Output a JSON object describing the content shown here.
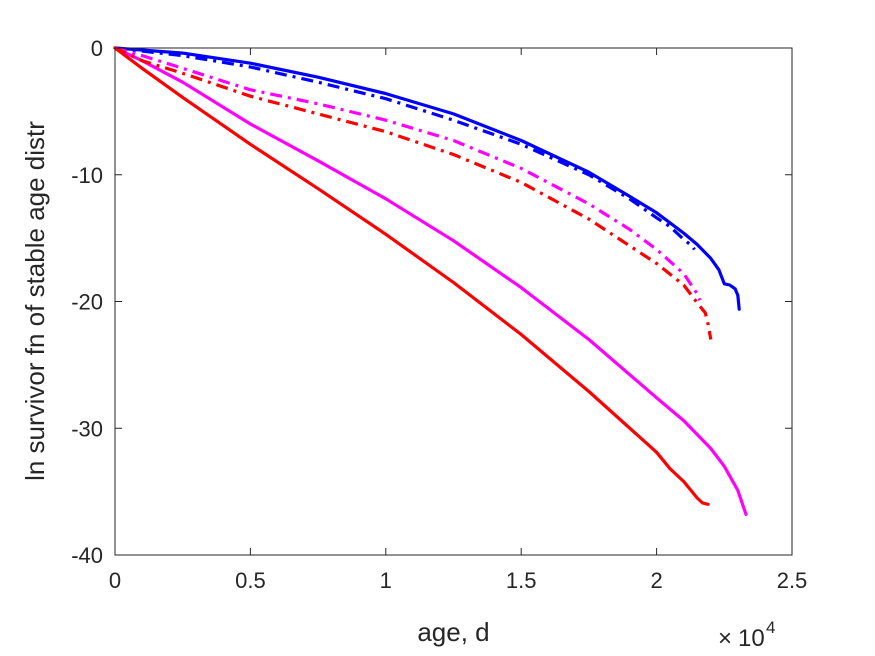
{
  "chart_data": {
    "type": "line",
    "xlabel": "age, d",
    "ylabel": "ln survivor fn of stable age distr",
    "x_exponent_label": {
      "times": "×",
      "base": "10",
      "power": "4"
    },
    "xlim": [
      0,
      25000
    ],
    "ylim": [
      -40,
      0
    ],
    "xticks": [
      0,
      5000,
      10000,
      15000,
      20000,
      25000
    ],
    "xtick_labels": [
      "0",
      "0.5",
      "1",
      "1.5",
      "2",
      "2.5"
    ],
    "yticks": [
      0,
      -10,
      -20,
      -30,
      -40
    ],
    "ytick_labels": [
      "0",
      "-10",
      "-20",
      "-30",
      "-40"
    ],
    "grid": false,
    "colors": {
      "blue": "#0000ff",
      "magenta": "#ff00ff",
      "red": "#ff0000"
    },
    "series": [
      {
        "color": "#0000ff",
        "style": "solid",
        "x": [
          0,
          2500,
          5000,
          7500,
          10000,
          12500,
          15000,
          17500,
          19000,
          20000,
          21000,
          21500,
          22000,
          22300,
          22500,
          22700,
          22900,
          23000,
          23050
        ],
        "y": [
          0,
          -0.4,
          -1.2,
          -2.3,
          -3.6,
          -5.2,
          -7.3,
          -9.8,
          -11.7,
          -13.0,
          -14.6,
          -15.5,
          -16.6,
          -17.5,
          -18.6,
          -18.7,
          -19.0,
          -19.5,
          -20.6
        ]
      },
      {
        "color": "#0000ff",
        "style": "dashdot",
        "x": [
          0,
          2500,
          5000,
          7500,
          10000,
          12500,
          15000,
          17500,
          19000,
          20000,
          20500,
          21000,
          21300,
          21400
        ],
        "y": [
          0,
          -0.6,
          -1.5,
          -2.7,
          -4.0,
          -5.7,
          -7.6,
          -10.0,
          -11.9,
          -13.4,
          -14.1,
          -15.1,
          -15.6,
          -15.9
        ]
      },
      {
        "color": "#ff00ff",
        "style": "solid",
        "x": [
          0,
          1000,
          2500,
          5000,
          7500,
          10000,
          12500,
          15000,
          17500,
          20000,
          21000,
          22000,
          22500,
          23000,
          23300
        ],
        "y": [
          0,
          -1.0,
          -2.7,
          -6.0,
          -8.9,
          -11.9,
          -15.2,
          -18.9,
          -23.0,
          -27.6,
          -29.4,
          -31.6,
          -33.0,
          -34.9,
          -36.8
        ]
      },
      {
        "color": "#ff00ff",
        "style": "dashdot",
        "x": [
          0,
          1000,
          2500,
          5000,
          7500,
          10000,
          12500,
          15000,
          17500,
          19000,
          20000,
          21000,
          21500,
          21600
        ],
        "y": [
          0,
          -0.6,
          -1.6,
          -3.3,
          -4.4,
          -5.7,
          -7.3,
          -9.5,
          -12.3,
          -14.3,
          -15.9,
          -17.8,
          -19.4,
          -19.9
        ]
      },
      {
        "color": "#ff0000",
        "style": "solid",
        "x": [
          0,
          1000,
          2500,
          5000,
          7500,
          10000,
          12500,
          15000,
          17500,
          20000,
          20500,
          21000,
          21500,
          21700,
          21900
        ],
        "y": [
          0,
          -1.6,
          -3.9,
          -7.6,
          -11.1,
          -14.7,
          -18.5,
          -22.6,
          -27.1,
          -31.9,
          -33.2,
          -34.2,
          -35.5,
          -35.9,
          -36.0
        ]
      },
      {
        "color": "#ff0000",
        "style": "dashdot",
        "x": [
          0,
          1000,
          2500,
          5000,
          7500,
          10000,
          12500,
          15000,
          17500,
          19000,
          20000,
          21000,
          21500,
          21800,
          21900,
          22000
        ],
        "y": [
          0,
          -1.0,
          -2.0,
          -3.8,
          -5.2,
          -6.6,
          -8.4,
          -10.6,
          -13.5,
          -15.6,
          -17.0,
          -18.7,
          -20.1,
          -20.9,
          -21.8,
          -23.0
        ]
      }
    ]
  }
}
